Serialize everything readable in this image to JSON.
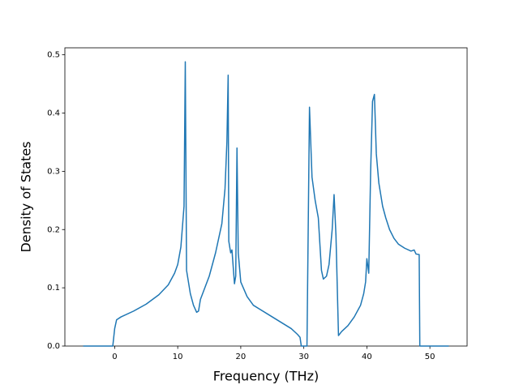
{
  "chart_data": {
    "type": "line",
    "xlabel": "Frequency (THz)",
    "ylabel": "Density of States",
    "x": [
      -5,
      -0.3,
      0,
      0.3,
      1,
      3,
      5,
      7,
      8.5,
      9.5,
      10,
      10.5,
      11,
      11.2,
      11.4,
      12,
      12.5,
      13,
      13.3,
      13.6,
      15,
      16,
      17,
      17.5,
      17.8,
      18,
      18.1,
      18.4,
      18.6,
      19,
      19.2,
      19.4,
      19.6,
      20,
      21,
      22,
      25,
      28,
      29,
      29.4,
      29.6,
      30.5,
      30.9,
      31.3,
      31.8,
      32.3,
      32.8,
      33.1,
      33.6,
      34,
      34.5,
      34.8,
      35.1,
      35.5,
      36,
      37,
      38,
      39,
      39.5,
      39.8,
      40,
      40.3,
      40.6,
      40.9,
      41.2,
      41.5,
      41.9,
      42.5,
      43,
      43.6,
      44.3,
      45,
      46,
      47,
      47.5,
      47.8,
      48.3,
      48.4,
      53
    ],
    "series": [
      {
        "color": "#1f77b4",
        "values": [
          0,
          0,
          0.03,
          0.045,
          0.05,
          0.06,
          0.072,
          0.088,
          0.105,
          0.125,
          0.14,
          0.17,
          0.24,
          0.488,
          0.13,
          0.09,
          0.07,
          0.058,
          0.06,
          0.08,
          0.12,
          0.16,
          0.21,
          0.27,
          0.35,
          0.465,
          0.18,
          0.16,
          0.165,
          0.107,
          0.12,
          0.34,
          0.16,
          0.11,
          0.085,
          0.07,
          0.05,
          0.03,
          0.02,
          0.015,
          0,
          0,
          0.41,
          0.29,
          0.25,
          0.22,
          0.13,
          0.115,
          0.12,
          0.14,
          0.2,
          0.26,
          0.19,
          0.018,
          0.025,
          0.035,
          0.05,
          0.07,
          0.09,
          0.11,
          0.15,
          0.125,
          0.3,
          0.42,
          0.432,
          0.33,
          0.28,
          0.24,
          0.22,
          0.2,
          0.185,
          0.175,
          0.168,
          0.163,
          0.165,
          0.158,
          0.157,
          0,
          0
        ]
      }
    ],
    "xlim": [
      -7.9,
      55.9
    ],
    "ylim": [
      0,
      0.512
    ],
    "xticks": [
      0,
      10,
      20,
      30,
      40,
      50
    ],
    "yticks": [
      {
        "value": 0,
        "label": "0.0"
      },
      0.1,
      0.2,
      0.3,
      0.4,
      0.5
    ]
  }
}
